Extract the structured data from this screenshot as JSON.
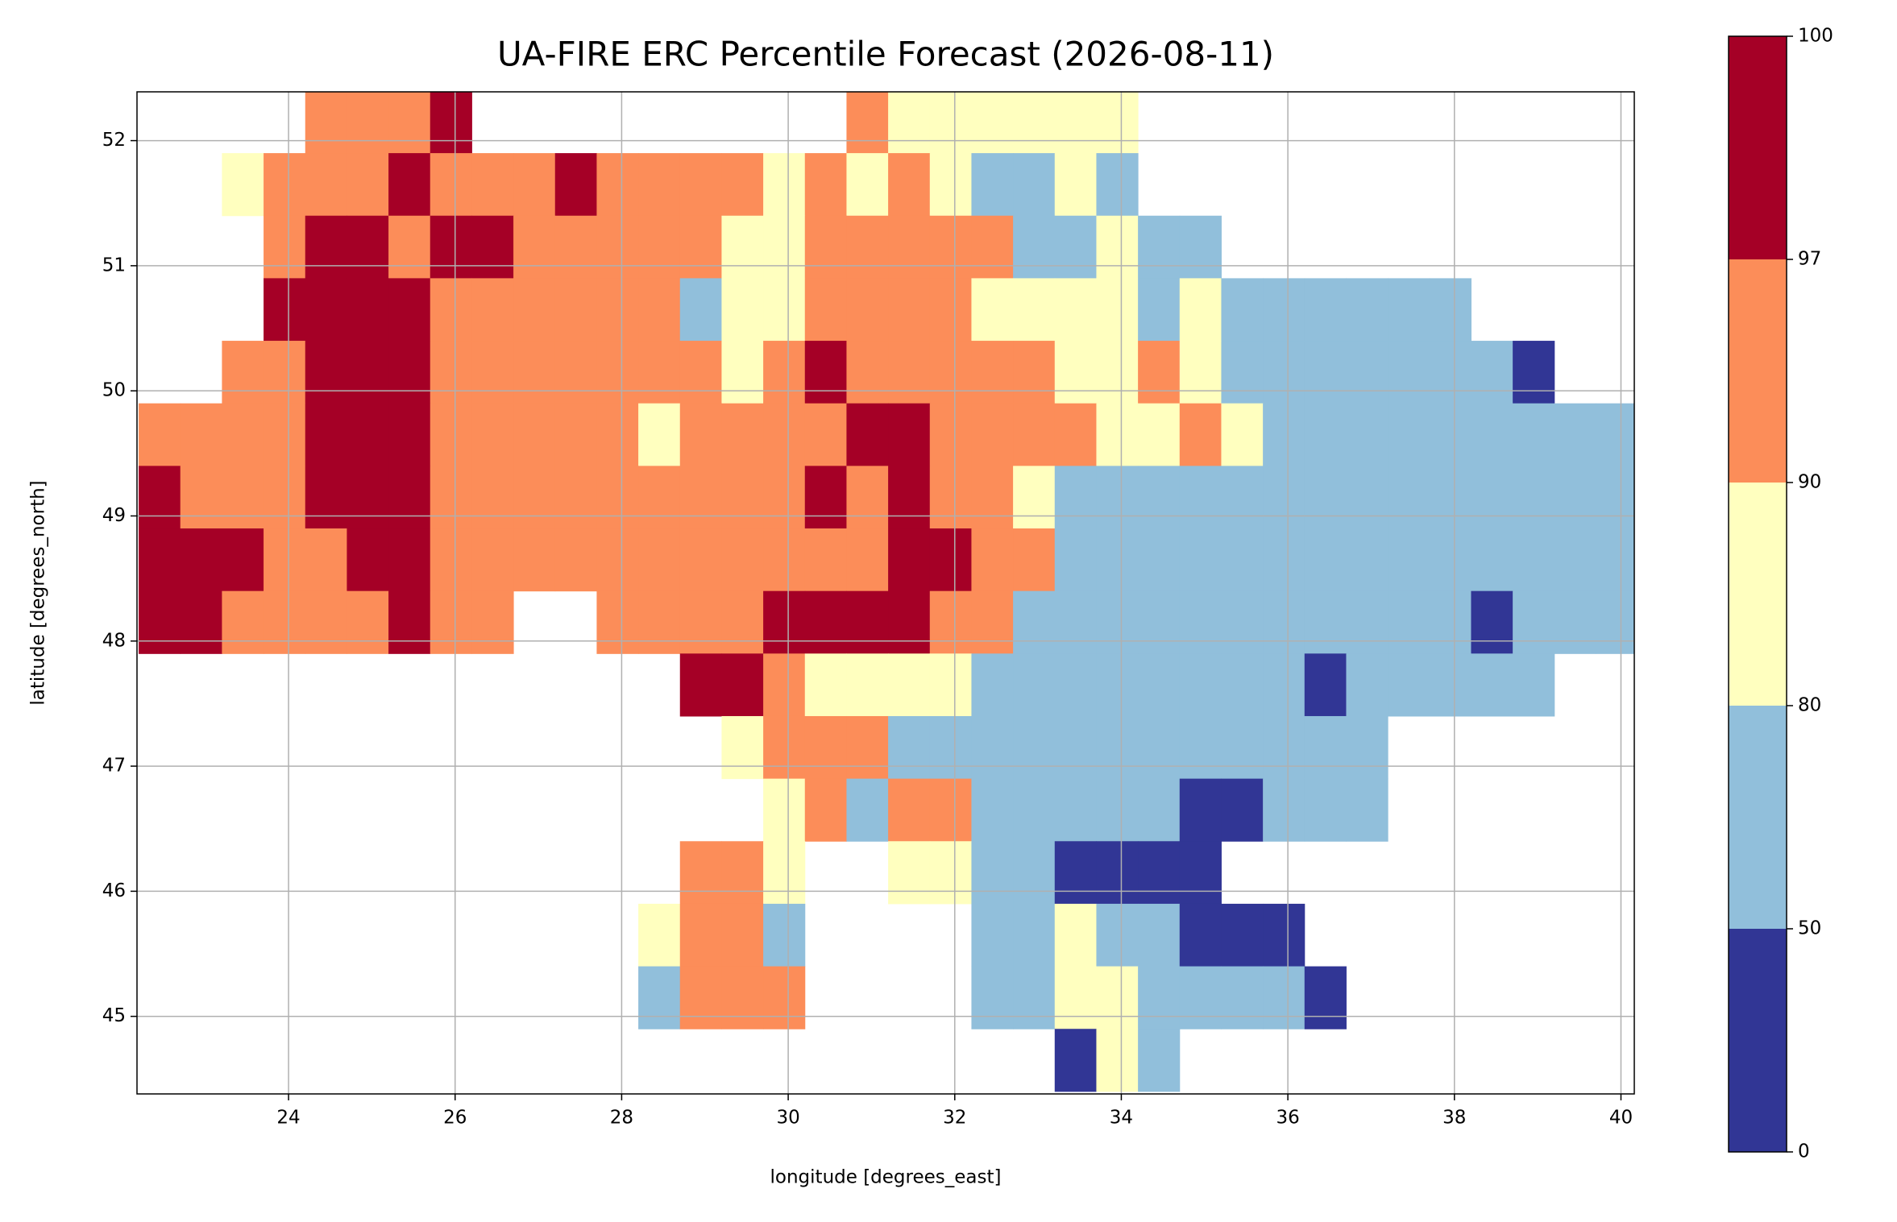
{
  "chart_data": {
    "type": "heatmap",
    "title": "UA-FIRE ERC Percentile Forecast (2026-08-11)",
    "x_label": "longitude [degrees_east]",
    "y_label": "latitude [degrees_north]",
    "xlim": [
      22.18,
      40.16
    ],
    "ylim": [
      44.38,
      52.39
    ],
    "xticks": [
      24,
      26,
      28,
      30,
      32,
      34,
      36,
      38,
      40
    ],
    "yticks": [
      45,
      46,
      47,
      48,
      49,
      50,
      51,
      52
    ],
    "grid": true,
    "x": [
      22.45,
      22.95,
      23.45,
      23.95,
      24.45,
      24.95,
      25.45,
      25.95,
      26.45,
      26.95,
      27.45,
      27.95,
      28.45,
      28.95,
      29.45,
      29.95,
      30.45,
      30.95,
      31.45,
      31.95,
      32.45,
      32.95,
      33.45,
      33.95,
      34.45,
      34.95,
      35.45,
      35.95,
      36.45,
      36.95,
      37.45,
      37.95,
      38.45,
      38.95,
      39.45,
      39.95
    ],
    "y": [
      52.15,
      51.65,
      51.15,
      50.65,
      50.15,
      49.65,
      49.15,
      48.65,
      48.15,
      47.65,
      47.15,
      46.65,
      46.15,
      45.65,
      45.15,
      44.65
    ],
    "z": [
      [
        null,
        null,
        null,
        null,
        93,
        93,
        93,
        98,
        null,
        null,
        null,
        null,
        null,
        null,
        null,
        null,
        null,
        93,
        85,
        85,
        85,
        85,
        85,
        85,
        null,
        null,
        null,
        null,
        null,
        null,
        null,
        null,
        null,
        null,
        null,
        null
      ],
      [
        null,
        null,
        85,
        93,
        93,
        93,
        98,
        93,
        93,
        93,
        98,
        93,
        93,
        93,
        93,
        85,
        93,
        85,
        93,
        85,
        65,
        65,
        85,
        65,
        null,
        null,
        null,
        null,
        null,
        null,
        null,
        null,
        null,
        null,
        null,
        null
      ],
      [
        null,
        null,
        null,
        93,
        98,
        98,
        93,
        98,
        98,
        93,
        93,
        93,
        93,
        93,
        85,
        85,
        93,
        93,
        93,
        93,
        93,
        65,
        65,
        85,
        65,
        65,
        null,
        null,
        null,
        null,
        null,
        null,
        null,
        null,
        null,
        null
      ],
      [
        null,
        null,
        null,
        98,
        98,
        98,
        98,
        93,
        93,
        93,
        93,
        93,
        93,
        65,
        85,
        85,
        93,
        93,
        93,
        93,
        85,
        85,
        85,
        85,
        65,
        85,
        65,
        65,
        65,
        65,
        65,
        65,
        null,
        null,
        null,
        null
      ],
      [
        null,
        null,
        93,
        93,
        98,
        98,
        98,
        93,
        93,
        93,
        93,
        93,
        93,
        93,
        85,
        93,
        98,
        93,
        93,
        93,
        93,
        93,
        85,
        85,
        93,
        85,
        65,
        65,
        65,
        65,
        65,
        65,
        65,
        25,
        null,
        null
      ],
      [
        93,
        93,
        93,
        93,
        98,
        98,
        98,
        93,
        93,
        93,
        93,
        93,
        85,
        93,
        93,
        93,
        93,
        98,
        98,
        93,
        93,
        93,
        93,
        85,
        85,
        93,
        85,
        65,
        65,
        65,
        65,
        65,
        65,
        65,
        65,
        65
      ],
      [
        98,
        93,
        93,
        93,
        98,
        98,
        98,
        93,
        93,
        93,
        93,
        93,
        93,
        93,
        93,
        93,
        98,
        93,
        98,
        93,
        93,
        85,
        65,
        65,
        65,
        65,
        65,
        65,
        65,
        65,
        65,
        65,
        65,
        65,
        65,
        65
      ],
      [
        98,
        98,
        98,
        93,
        93,
        98,
        98,
        93,
        93,
        93,
        93,
        93,
        93,
        93,
        93,
        93,
        93,
        93,
        98,
        98,
        93,
        93,
        65,
        65,
        65,
        65,
        65,
        65,
        65,
        65,
        65,
        65,
        65,
        65,
        65,
        65
      ],
      [
        98,
        98,
        93,
        93,
        93,
        93,
        98,
        93,
        93,
        null,
        null,
        93,
        93,
        93,
        93,
        98,
        98,
        98,
        98,
        93,
        93,
        65,
        65,
        65,
        65,
        65,
        65,
        65,
        65,
        65,
        65,
        65,
        25,
        65,
        65,
        65
      ],
      [
        null,
        null,
        null,
        null,
        null,
        null,
        null,
        null,
        null,
        null,
        null,
        null,
        null,
        98,
        98,
        93,
        85,
        85,
        85,
        85,
        65,
        65,
        65,
        65,
        65,
        65,
        65,
        65,
        25,
        65,
        65,
        65,
        65,
        65,
        null,
        null
      ],
      [
        null,
        null,
        null,
        null,
        null,
        null,
        null,
        null,
        null,
        null,
        null,
        null,
        null,
        null,
        85,
        93,
        93,
        93,
        65,
        65,
        65,
        65,
        65,
        65,
        65,
        65,
        65,
        65,
        65,
        65,
        null,
        null,
        null,
        null,
        null,
        null
      ],
      [
        null,
        null,
        null,
        null,
        null,
        null,
        null,
        null,
        null,
        null,
        null,
        null,
        null,
        null,
        null,
        85,
        93,
        65,
        93,
        93,
        65,
        65,
        65,
        65,
        65,
        25,
        25,
        65,
        65,
        65,
        null,
        null,
        null,
        null,
        null,
        null
      ],
      [
        null,
        null,
        null,
        null,
        null,
        null,
        null,
        null,
        null,
        null,
        null,
        null,
        null,
        93,
        93,
        85,
        null,
        null,
        85,
        85,
        65,
        65,
        25,
        25,
        25,
        25,
        null,
        null,
        null,
        null,
        null,
        null,
        null,
        null,
        null,
        null
      ],
      [
        null,
        null,
        null,
        null,
        null,
        null,
        null,
        null,
        null,
        null,
        null,
        null,
        85,
        93,
        93,
        65,
        null,
        null,
        null,
        null,
        65,
        65,
        85,
        65,
        65,
        25,
        25,
        25,
        null,
        null,
        null,
        null,
        null,
        null,
        null,
        null
      ],
      [
        null,
        null,
        null,
        null,
        null,
        null,
        null,
        null,
        null,
        null,
        null,
        null,
        65,
        93,
        93,
        93,
        null,
        null,
        null,
        null,
        65,
        65,
        85,
        85,
        65,
        65,
        65,
        65,
        25,
        null,
        null,
        null,
        null,
        null,
        null,
        null
      ],
      [
        null,
        null,
        null,
        null,
        null,
        null,
        null,
        null,
        null,
        null,
        null,
        null,
        null,
        null,
        null,
        null,
        null,
        null,
        null,
        null,
        null,
        null,
        25,
        85,
        65,
        null,
        null,
        null,
        null,
        null,
        null,
        null,
        null,
        null,
        null,
        null
      ]
    ],
    "colorbar": {
      "levels": [
        0,
        50,
        80,
        90,
        97,
        100
      ],
      "colors": [
        "#313695",
        "#91bfdb",
        "#ffffbf",
        "#fc8d59",
        "#a50026"
      ]
    }
  }
}
